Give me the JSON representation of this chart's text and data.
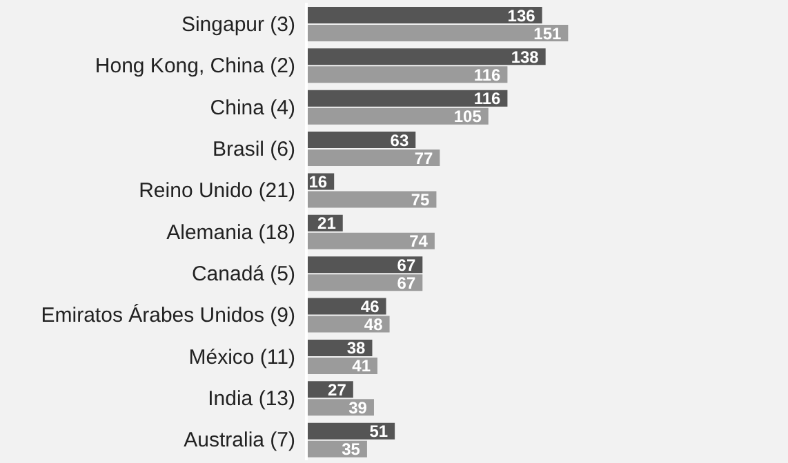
{
  "chart_data": {
    "type": "bar",
    "orientation": "horizontal",
    "categories": [
      "Singapur (3)",
      "Hong Kong, China (2)",
      "China (4)",
      "Brasil (6)",
      "Reino Unido (21)",
      "Alemania (18)",
      "Canadá (5)",
      "Emiratos Árabes Unidos (9)",
      "México (11)",
      "India (13)",
      "Australia (7)"
    ],
    "series": [
      {
        "color": "#555555",
        "values": [
          136,
          138,
          116,
          63,
          16,
          21,
          67,
          46,
          38,
          27,
          51
        ]
      },
      {
        "color": "#9b9b9b",
        "values": [
          151,
          116,
          105,
          77,
          75,
          74,
          67,
          48,
          41,
          39,
          35
        ]
      }
    ],
    "data_labels": true,
    "grid": false,
    "legend": false
  }
}
